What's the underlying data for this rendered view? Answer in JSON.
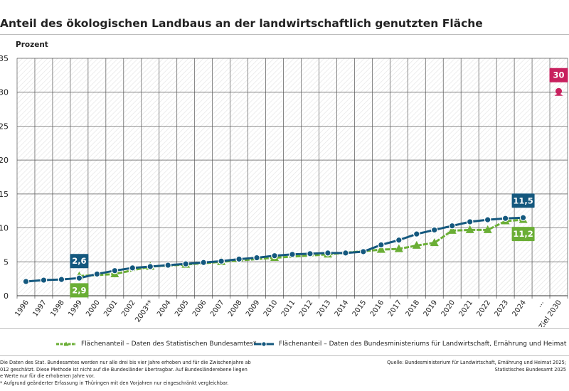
{
  "title": "Anteil des ökologischen Landbaus an der landwirtschaftlich genutzten Fläche",
  "colors": {
    "green": "#6aae35",
    "blue": "#14587e",
    "pink": "#c8205e",
    "grid": "#555555"
  },
  "chart_data": {
    "type": "line",
    "title": "Anteil des ökologischen Landbaus an der landwirtschaftlich genutzten Fläche",
    "ylabel": "Prozent",
    "ylim": [
      0,
      35
    ],
    "yticks": [
      "0",
      "5",
      "10",
      "15",
      "20",
      "25",
      "30",
      "35"
    ],
    "categories": [
      "1996",
      "1997",
      "1998",
      "1999",
      "2000",
      "2001",
      "2002",
      "2003**",
      "2004",
      "2005",
      "2006",
      "2007",
      "2008",
      "2009",
      "2010",
      "2011",
      "2012",
      "2013",
      "2014",
      "2015",
      "2016",
      "2017",
      "2018",
      "2019",
      "2020",
      "2021",
      "2022",
      "2023",
      "2024",
      "...",
      "Ziel 2030"
    ],
    "series": [
      {
        "name": "Flächenanteil – Daten des Statistischen Bundesamtes*",
        "color": "#6aae35",
        "marker": "triangle",
        "x": [
          "1999",
          "2001",
          "2003**",
          "2005",
          "2007",
          "2010",
          "2013",
          "2016",
          "2017",
          "2018",
          "2019",
          "2020",
          "2021",
          "2022",
          "2023",
          "2024"
        ],
        "values": [
          2.9,
          3.2,
          4.3,
          4.6,
          5.0,
          5.6,
          6.1,
          6.8,
          6.9,
          7.4,
          7.8,
          9.6,
          9.7,
          9.7,
          11.0,
          11.2
        ]
      },
      {
        "name": "Flächenanteil – Daten des Bundesministeriums für Landwirtschaft, Ernährung und Heimat",
        "color": "#14587e",
        "marker": "circle",
        "x": [
          "1996",
          "1997",
          "1998",
          "1999",
          "2000",
          "2001",
          "2002",
          "2003**",
          "2004",
          "2005",
          "2006",
          "2007",
          "2008",
          "2009",
          "2010",
          "2011",
          "2012",
          "2013",
          "2014",
          "2015",
          "2016",
          "2017",
          "2018",
          "2019",
          "2020",
          "2021",
          "2022",
          "2023",
          "2024"
        ],
        "values": [
          2.1,
          2.3,
          2.4,
          2.6,
          3.2,
          3.7,
          4.1,
          4.3,
          4.5,
          4.7,
          4.9,
          5.1,
          5.4,
          5.6,
          5.9,
          6.1,
          6.2,
          6.3,
          6.3,
          6.5,
          7.5,
          8.2,
          9.1,
          9.7,
          10.3,
          10.9,
          11.2,
          11.4,
          11.5
        ]
      },
      {
        "name": "Ziel 2030",
        "color": "#c8205e",
        "marker": "target",
        "x": [
          "Ziel 2030"
        ],
        "values": [
          30
        ]
      }
    ],
    "annotations": [
      {
        "series": 1,
        "x": "1999",
        "label": "2,6",
        "position": "above"
      },
      {
        "series": 0,
        "x": "1999",
        "label": "2,9",
        "position": "below"
      },
      {
        "series": 1,
        "x": "2024",
        "label": "11,5",
        "position": "above"
      },
      {
        "series": 0,
        "x": "2024",
        "label": "11,2",
        "position": "below"
      },
      {
        "series": 2,
        "x": "Ziel 2030",
        "label": "30",
        "position": "above"
      }
    ]
  },
  "legend": {
    "green": "Flächenanteil – Daten des Statistischen Bundesamtes*",
    "blue": "Flächenanteil – Daten des Bundesministeriums für Landwirtschaft, Ernährung und Heimat"
  },
  "footnotes": {
    "line1": "Die Daten des Stat. Bundesamtes werden nur alle drei bis vier Jahre erhoben und für die Zwischenjahre ab",
    "line2": "012 geschätzt. Diese Methode ist nicht auf die Bundesländer übertragbar. Auf Bundesländerebene liegen",
    "line3": "e Werte nur für die erhobenen Jahre vor.",
    "line4": "* Aufgrund geänderter Erfassung in Thüringen mit den Vorjahren nur eingeschränkt vergleichbar."
  },
  "source": {
    "line1": "Quelle: Bundesministerium für Landwirtschaft, Ernährung und Heimat 2025;",
    "line2": "Statistisches Bundesamt 2025"
  }
}
